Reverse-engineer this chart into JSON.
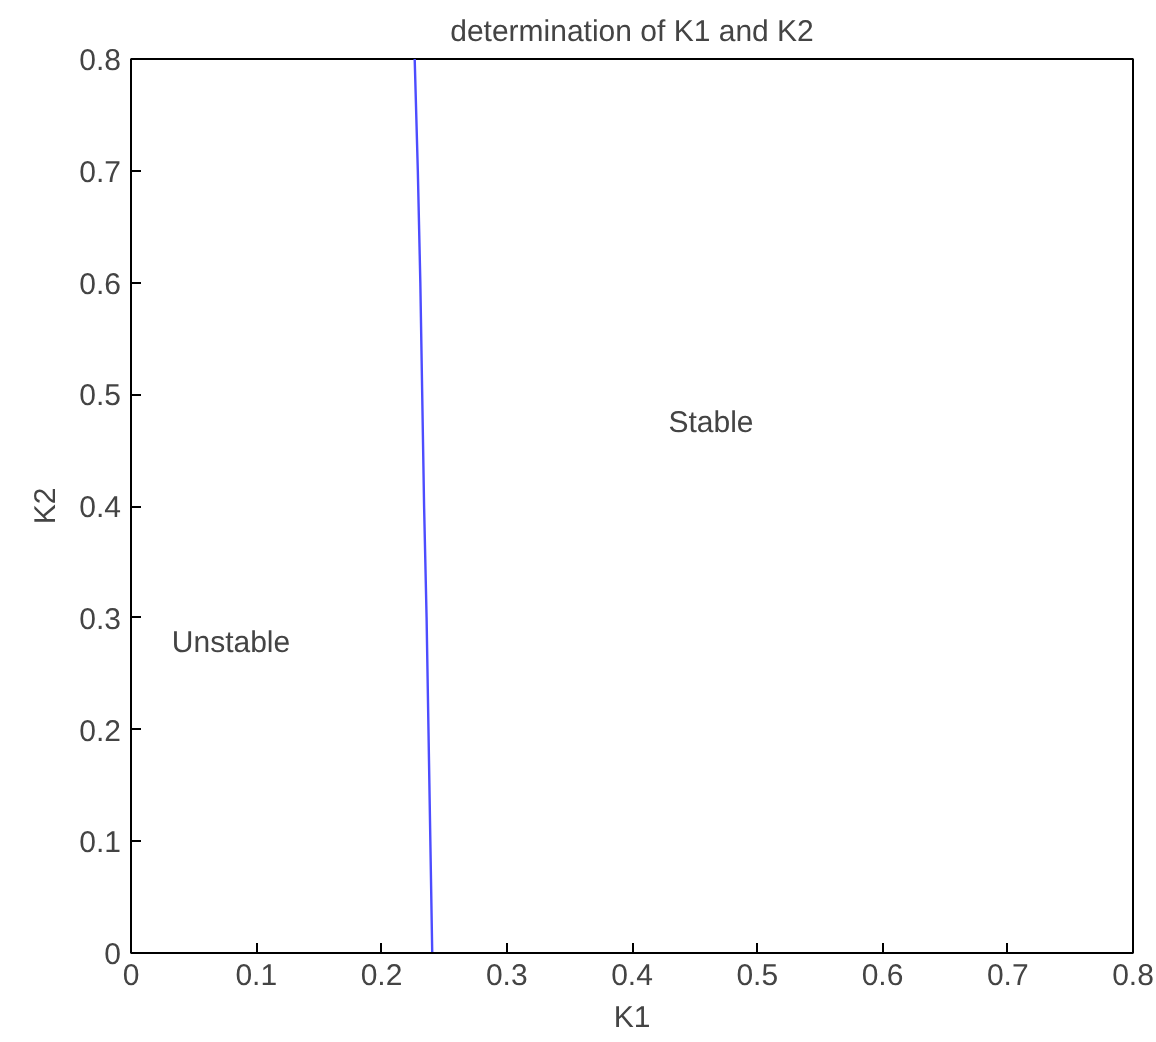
{
  "chart_data": {
    "type": "line",
    "title": "determination of K1 and K2",
    "xlabel": "K1",
    "ylabel": "K2",
    "series": [
      {
        "color": "#4d4dff",
        "x": [
          0.2405,
          0.239,
          0.2375,
          0.236,
          0.234,
          0.2325,
          0.231,
          0.229,
          0.2265
        ],
        "values": [
          0,
          0.1,
          0.2,
          0.3,
          0.4,
          0.5,
          0.6,
          0.7,
          0.8
        ]
      }
    ],
    "xlim": [
      0,
      0.8
    ],
    "ylim": [
      0,
      0.8
    ],
    "xticks": [
      0,
      0.1,
      0.2,
      0.3,
      0.4,
      0.5,
      0.6,
      0.7,
      0.8
    ],
    "yticks": [
      0,
      0.1,
      0.2,
      0.3,
      0.4,
      0.5,
      0.6,
      0.7,
      0.8
    ],
    "annotations": [
      "Unstable",
      "Stable"
    ],
    "grid": false,
    "marker": "none",
    "line_style": "solid"
  }
}
